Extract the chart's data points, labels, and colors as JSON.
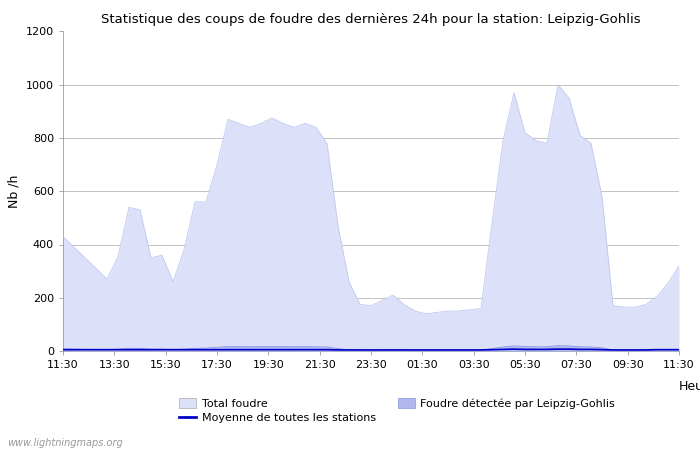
{
  "title": "Statistique des coups de foudre des dernières 24h pour la station: Leipzig-Gohlis",
  "xlabel": "Heure",
  "ylabel": "Nb /h",
  "watermark": "www.lightningmaps.org",
  "ylim": [
    0,
    1200
  ],
  "yticks": [
    0,
    200,
    400,
    600,
    800,
    1000,
    1200
  ],
  "xtick_labels": [
    "11:30",
    "13:30",
    "15:30",
    "17:30",
    "19:30",
    "21:30",
    "23:30",
    "01:30",
    "03:30",
    "05:30",
    "07:30",
    "09:30",
    "11:30"
  ],
  "color_total_fill": "#dce0f8",
  "color_total_edge": "#c0c8f0",
  "color_detected_fill": "#b0b8ee",
  "color_detected_edge": "#8898dd",
  "color_moyenne": "#0000cc",
  "bg_color": "#ffffff",
  "grid_color": "#aaaaaa",
  "total_foudre": [
    430,
    390,
    350,
    310,
    270,
    355,
    540,
    530,
    350,
    360,
    260,
    380,
    560,
    560,
    700,
    870,
    855,
    840,
    855,
    875,
    855,
    840,
    855,
    840,
    780,
    470,
    260,
    175,
    170,
    190,
    210,
    175,
    150,
    140,
    145,
    150,
    150,
    155,
    160,
    480,
    790,
    970,
    820,
    790,
    780,
    1000,
    950,
    810,
    780,
    580,
    170,
    165,
    165,
    175,
    205,
    255,
    320
  ],
  "detected_foudre": [
    8,
    7,
    6,
    6,
    5,
    7,
    10,
    10,
    7,
    7,
    5,
    7,
    10,
    11,
    14,
    17,
    17,
    16,
    17,
    17,
    17,
    16,
    17,
    16,
    15,
    9,
    5,
    4,
    3,
    4,
    4,
    4,
    3,
    3,
    3,
    3,
    3,
    3,
    3,
    9,
    15,
    19,
    17,
    16,
    16,
    20,
    19,
    16,
    15,
    12,
    4,
    3,
    3,
    4,
    4,
    5,
    6
  ],
  "moyenne": [
    5,
    5,
    5,
    5,
    5,
    5,
    5,
    5,
    5,
    5,
    5,
    5,
    5,
    5,
    5,
    5,
    5,
    5,
    5,
    5,
    5,
    5,
    5,
    5,
    5,
    4,
    4,
    4,
    4,
    4,
    4,
    4,
    4,
    4,
    4,
    4,
    4,
    4,
    4,
    5,
    6,
    7,
    6,
    6,
    6,
    7,
    7,
    6,
    6,
    5,
    4,
    4,
    4,
    4,
    5,
    5,
    5
  ],
  "legend_total_label": "Total foudre",
  "legend_detected_label": "Foudre détectée par Leipzig-Gohlis",
  "legend_moyenne_label": "Moyenne de toutes les stations"
}
